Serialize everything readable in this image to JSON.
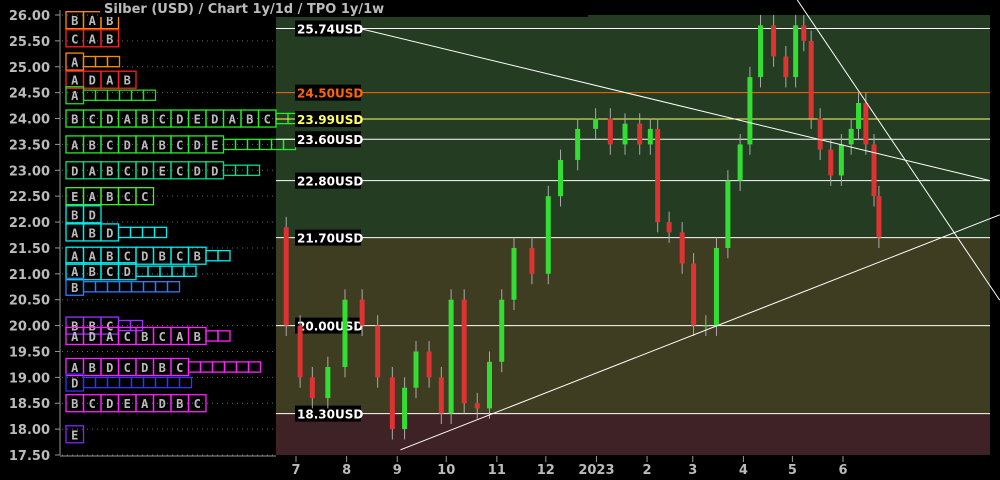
{
  "title": "Silber (USD) /  Chart 1y/1d / TPO 1y/1w",
  "colors": {
    "zone_top": "#233c22",
    "zone_mid": "#3e3d22",
    "zone_bottom": "#3f2226",
    "up": "#33dd33",
    "down": "#dd3333",
    "orange": "#ff6600",
    "yellow": "#ffff66"
  },
  "chart_data": {
    "type": "candlestick",
    "title": "Silber (USD) /  Chart 1y/1d / TPO 1y/1w",
    "ylim": [
      17.5,
      26.0
    ],
    "xlim": [
      "2022-06-19",
      "2023-09-05"
    ],
    "y_ticks": [
      "17.50",
      "18.00",
      "18.50",
      "19.00",
      "19.50",
      "20.00",
      "20.50",
      "21.00",
      "21.50",
      "22.00",
      "22.50",
      "23.00",
      "23.50",
      "24.00",
      "24.50",
      "25.00",
      "25.50",
      "26.00"
    ],
    "x_ticks": [
      {
        "label": "7",
        "date": "2022-07-01"
      },
      {
        "label": "8",
        "date": "2022-08-01"
      },
      {
        "label": "9",
        "date": "2022-09-01"
      },
      {
        "label": "10",
        "date": "2022-10-01"
      },
      {
        "label": "11",
        "date": "2022-11-01"
      },
      {
        "label": "12",
        "date": "2022-12-01"
      },
      {
        "label": "2023",
        "date": "2023-01-01"
      },
      {
        "label": "2",
        "date": "2023-02-01"
      },
      {
        "label": "3",
        "date": "2023-03-01"
      },
      {
        "label": "4",
        "date": "2023-04-01"
      },
      {
        "label": "5",
        "date": "2023-05-01"
      },
      {
        "label": "6",
        "date": "2023-06-01"
      }
    ],
    "zones": [
      {
        "from": 21.7,
        "to": 26.0,
        "color": "#233c22"
      },
      {
        "from": 18.3,
        "to": 21.7,
        "color": "#3e3d22"
      },
      {
        "from": 17.5,
        "to": 18.3,
        "color": "#3f2226"
      }
    ],
    "levels": [
      {
        "price": 25.74,
        "label": "25.74USD",
        "color": "#ffffff"
      },
      {
        "price": 24.5,
        "label": "24.50USD",
        "color": "#ff6600"
      },
      {
        "price": 23.99,
        "label": "23.99USD",
        "color": "#ffff66"
      },
      {
        "price": 23.6,
        "label": "23.60USD",
        "color": "#ffffff"
      },
      {
        "price": 22.8,
        "label": "22.80USD",
        "color": "#ffffff"
      },
      {
        "price": 21.7,
        "label": "21.70USD",
        "color": "#ffffff"
      },
      {
        "price": 20.0,
        "label": "20.00USD",
        "color": "#ffffff"
      },
      {
        "price": 18.3,
        "label": "18.30USD",
        "color": "#ffffff"
      }
    ],
    "trendlines": [
      {
        "from": [
          "2022-08-09",
          25.74
        ],
        "to": [
          "2023-08-30",
          22.8
        ]
      },
      {
        "from": [
          "2022-09-03",
          17.6
        ],
        "to": [
          "2023-09-05",
          22.14
        ]
      },
      {
        "from": [
          "2023-05-04",
          26.29
        ],
        "to": [
          "2023-09-05",
          20.49
        ]
      }
    ],
    "closes": [
      [
        "2022-06-19",
        21.9
      ],
      [
        "2022-07-01",
        20.0
      ],
      [
        "2022-07-06",
        19.0
      ],
      [
        "2022-07-16",
        18.6
      ],
      [
        "2022-07-25",
        19.2
      ],
      [
        "2022-08-06",
        20.5
      ],
      [
        "2022-08-15",
        20.0
      ],
      [
        "2022-08-25",
        19.0
      ],
      [
        "2022-09-02",
        18.0
      ],
      [
        "2022-09-09",
        18.8
      ],
      [
        "2022-09-16",
        19.5
      ],
      [
        "2022-09-25",
        19.0
      ],
      [
        "2022-10-01",
        18.3
      ],
      [
        "2022-10-07",
        20.5
      ],
      [
        "2022-10-17",
        18.5
      ],
      [
        "2022-10-23",
        18.4
      ],
      [
        "2022-11-01",
        19.3
      ],
      [
        "2022-11-07",
        20.5
      ],
      [
        "2022-11-16",
        21.5
      ],
      [
        "2022-11-29",
        21.0
      ],
      [
        "2022-12-06",
        22.5
      ],
      [
        "2022-12-14",
        23.2
      ],
      [
        "2022-12-27",
        23.8
      ],
      [
        "2023-01-05",
        24.0
      ],
      [
        "2023-01-14",
        23.5
      ],
      [
        "2023-01-23",
        23.9
      ],
      [
        "2023-02-01",
        23.5
      ],
      [
        "2023-02-05",
        23.8
      ],
      [
        "2023-02-10",
        22.0
      ],
      [
        "2023-02-19",
        21.8
      ],
      [
        "2023-02-26",
        21.2
      ],
      [
        "2023-03-05",
        20.0
      ],
      [
        "2023-03-13",
        20.0
      ],
      [
        "2023-03-18",
        21.5
      ],
      [
        "2023-03-27",
        22.8
      ],
      [
        "2023-04-02",
        23.5
      ],
      [
        "2023-04-08",
        24.8
      ],
      [
        "2023-04-15",
        25.8
      ],
      [
        "2023-04-24",
        25.2
      ],
      [
        "2023-04-30",
        24.8
      ],
      [
        "2023-05-06",
        25.8
      ],
      [
        "2023-05-10",
        25.5
      ],
      [
        "2023-05-15",
        24.0
      ],
      [
        "2023-05-21",
        23.4
      ],
      [
        "2023-05-28",
        22.9
      ],
      [
        "2023-06-03",
        23.5
      ],
      [
        "2023-06-09",
        23.8
      ],
      [
        "2023-06-12",
        24.3
      ],
      [
        "2023-06-18",
        23.5
      ],
      [
        "2023-06-22",
        22.5
      ],
      [
        "2023-06-24",
        21.7
      ]
    ],
    "tpo_rows": [
      {
        "price": 25.9,
        "letters": "BAB",
        "color": "#ff8c00",
        "empty": 0
      },
      {
        "price": 25.55,
        "letters": "CAB",
        "color": "#ff2020",
        "empty": 0
      },
      {
        "price": 25.1,
        "letters": "A",
        "color": "#ff8c00",
        "empty": 3
      },
      {
        "price": 24.75,
        "letters": "ADAB",
        "color": "#ff2020",
        "empty": 0
      },
      {
        "price": 24.45,
        "letters": "A",
        "color": "#22dd22",
        "empty": 6
      },
      {
        "price": 24.0,
        "letters": "BCDABCDEDABC",
        "color": "#22ee22",
        "empty": 5
      },
      {
        "price": 23.5,
        "letters": "ABCDABCDE",
        "color": "#22ee22",
        "empty": 6
      },
      {
        "price": 23.0,
        "letters": "DABCDECDD",
        "color": "#00dd88",
        "empty": 3
      },
      {
        "price": 22.5,
        "letters": "EABCC",
        "color": "#44ee22",
        "empty": 0
      },
      {
        "price": 22.15,
        "letters": "BD",
        "color": "#00eeee",
        "empty": 0
      },
      {
        "price": 21.8,
        "letters": "ABD",
        "color": "#00eeee",
        "empty": 4
      },
      {
        "price": 21.35,
        "letters": "AABCDBCB",
        "color": "#00eeee",
        "empty": 2
      },
      {
        "price": 21.05,
        "letters": "ABCD",
        "color": "#00eeee",
        "empty": 5
      },
      {
        "price": 20.75,
        "letters": "B",
        "color": "#3377ff",
        "empty": 8
      },
      {
        "price": 20.0,
        "letters": "BBC",
        "color": "#9933ff",
        "empty": 2
      },
      {
        "price": 19.8,
        "letters": "ADACBCAB",
        "color": "#ff22ff",
        "empty": 2
      },
      {
        "price": 19.2,
        "letters": "ABDCDBC",
        "color": "#ff22ff",
        "empty": 6
      },
      {
        "price": 18.9,
        "letters": "D",
        "color": "#3333ff",
        "empty": 9
      },
      {
        "price": 18.5,
        "letters": "BCDEADBC",
        "color": "#ff22ff",
        "empty": 0
      },
      {
        "price": 17.9,
        "letters": "E",
        "color": "#8822ff",
        "empty": 0
      }
    ]
  }
}
